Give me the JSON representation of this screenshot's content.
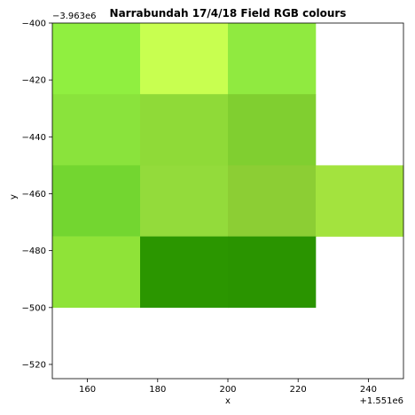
{
  "chart_data": {
    "type": "heatmap",
    "title": "Narrabundah 17/4/18 Field RGB colours",
    "xlabel": "x",
    "ylabel": "y",
    "x_offset_label": "+1.551e6",
    "y_offset_label": "−3.963e6",
    "xlim": [
      150,
      250
    ],
    "ylim": [
      -525,
      -400
    ],
    "x_ticks": [
      160,
      180,
      200,
      220,
      240
    ],
    "y_ticks": [
      -400,
      -420,
      -440,
      -460,
      -480,
      -500,
      -520
    ],
    "cell_width": 25,
    "cell_height": 25,
    "cells": [
      {
        "x0": 150,
        "y_top": -400,
        "color": "#90ef40"
      },
      {
        "x0": 175,
        "y_top": -400,
        "color": "#c8ff50"
      },
      {
        "x0": 200,
        "y_top": -400,
        "color": "#90ea40"
      },
      {
        "x0": 150,
        "y_top": -425,
        "color": "#8ae33c"
      },
      {
        "x0": 175,
        "y_top": -425,
        "color": "#8fda38"
      },
      {
        "x0": 200,
        "y_top": -425,
        "color": "#80cf30"
      },
      {
        "x0": 150,
        "y_top": -450,
        "color": "#73d630"
      },
      {
        "x0": 175,
        "y_top": -450,
        "color": "#93db3b"
      },
      {
        "x0": 200,
        "y_top": -450,
        "color": "#8cce34"
      },
      {
        "x0": 225,
        "y_top": -450,
        "color": "#a3e33e"
      },
      {
        "x0": 150,
        "y_top": -475,
        "color": "#8fe338"
      },
      {
        "x0": 175,
        "y_top": -475,
        "color": "#2b9600"
      },
      {
        "x0": 200,
        "y_top": -475,
        "color": "#2a9400"
      }
    ]
  }
}
